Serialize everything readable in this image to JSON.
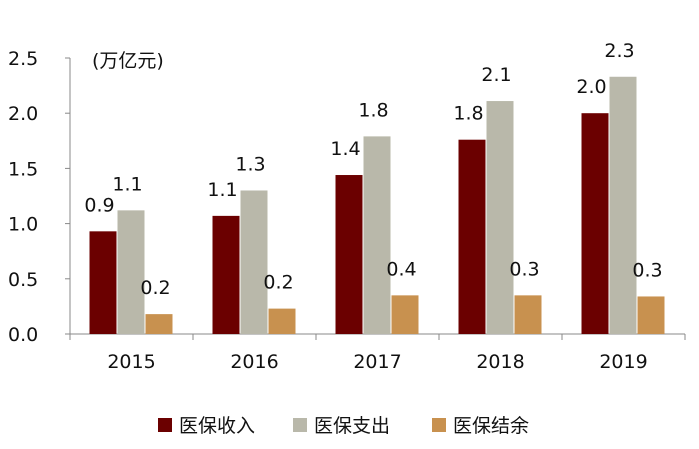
{
  "chart_data": {
    "type": "bar",
    "unit_label": "(万亿元)",
    "categories": [
      "2015",
      "2016",
      "2017",
      "2018",
      "2019"
    ],
    "series": [
      {
        "name": "医保收入",
        "color": "#6b0000",
        "values": [
          0.93,
          1.07,
          1.44,
          1.76,
          2.0
        ],
        "labels": [
          "0.9",
          "1.1",
          "1.4",
          "1.8",
          "2.0"
        ]
      },
      {
        "name": "医保支出",
        "color": "#b9b8aa",
        "values": [
          1.12,
          1.3,
          1.79,
          2.11,
          2.33
        ],
        "labels": [
          "1.1",
          "1.3",
          "1.8",
          "2.1",
          "2.3"
        ]
      },
      {
        "name": "医保结余",
        "color": "#c8914f",
        "values": [
          0.18,
          0.23,
          0.35,
          0.35,
          0.34
        ],
        "labels": [
          "0.2",
          "0.2",
          "0.4",
          "0.3",
          "0.3"
        ]
      }
    ],
    "ylim": [
      0,
      2.5
    ],
    "yticks": [
      "0.0",
      "0.5",
      "1.0",
      "1.5",
      "2.0",
      "2.5"
    ],
    "legend_position": "bottom",
    "grid": false
  }
}
